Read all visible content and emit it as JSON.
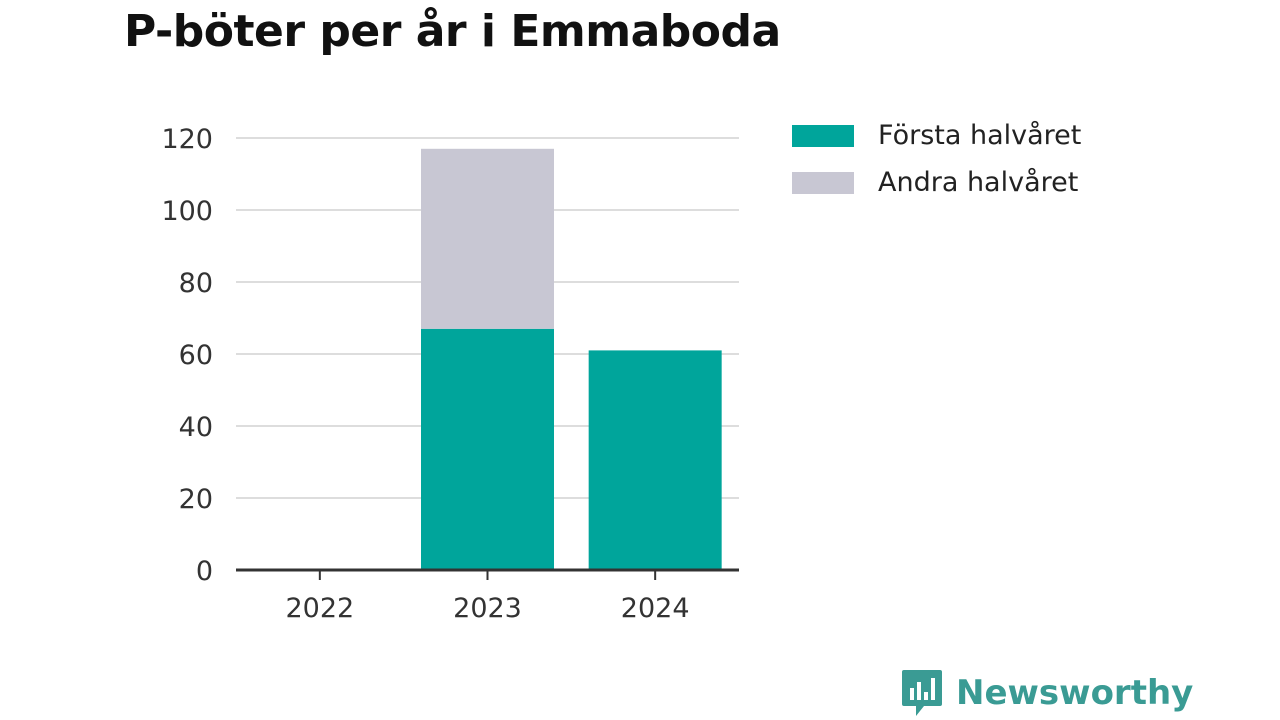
{
  "title": "P-böter per år i Emmaboda",
  "colors": {
    "first_half": "#00a59b",
    "second_half": "#c8c7d3",
    "brand": "#3a9b94"
  },
  "brand": {
    "name": "Newsworthy",
    "icon": "chart-bubble-icon"
  },
  "chart_data": {
    "type": "bar",
    "stacked": true,
    "title": "P-böter per år i Emmaboda",
    "categories": [
      "2022",
      "2023",
      "2024"
    ],
    "series": [
      {
        "name": "Första halvåret",
        "values": [
          0,
          67,
          61
        ]
      },
      {
        "name": "Andra halvåret",
        "values": [
          0,
          50,
          0
        ]
      }
    ],
    "ylim": [
      0,
      120
    ],
    "yticks": [
      0,
      20,
      40,
      60,
      80,
      100,
      120
    ],
    "grid": true,
    "legend": "top-right"
  }
}
